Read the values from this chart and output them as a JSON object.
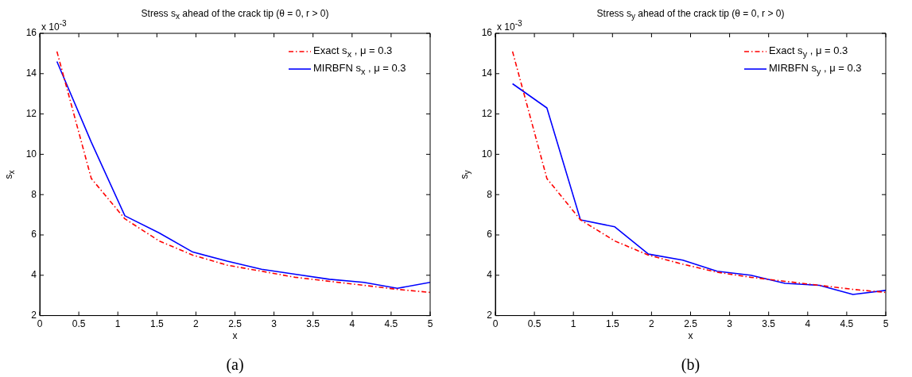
{
  "chart_data": [
    {
      "type": "line",
      "title": "Stress s$_{x}$ ahead of the crack tip (θ = 0, r > 0)",
      "xlabel": "x",
      "ylabel": "s$_{x}$",
      "annotations": [
        "x 10$^{-3}$",
        "(a)"
      ],
      "xlim": [
        0,
        5
      ],
      "xticks": [
        0,
        0.5,
        1,
        1.5,
        2,
        2.5,
        3,
        3.5,
        4,
        4.5,
        5
      ],
      "ylim": [
        2,
        16
      ],
      "yticks": [
        2,
        4,
        6,
        8,
        10,
        12,
        14,
        16
      ],
      "legend": "top right",
      "x": [
        0.22,
        0.66,
        1.09,
        1.53,
        1.96,
        2.4,
        2.84,
        3.27,
        3.71,
        4.15,
        4.58,
        5.0
      ],
      "series": [
        {
          "name": "Exact s$_{x}$ , μ = 0.3",
          "color": "#ff0000",
          "line_style": "dashed",
          "values": [
            15.1,
            8.8,
            6.8,
            5.7,
            5.0,
            4.5,
            4.2,
            3.9,
            3.7,
            3.5,
            3.3,
            3.15
          ]
        },
        {
          "name": "MIRBFN s$_{x}$ , μ = 0.3",
          "color": "#0000ff",
          "line_style": "solid",
          "values": [
            14.6,
            10.6,
            6.95,
            6.1,
            5.15,
            4.7,
            4.3,
            4.05,
            3.8,
            3.65,
            3.35,
            3.65
          ]
        }
      ]
    },
    {
      "type": "line",
      "title": "Stress s$_{y}$ ahead of the crack tip (θ = 0, r > 0)",
      "xlabel": "x",
      "ylabel": "s$_{y}$",
      "annotations": [
        "x 10$^{-3}$",
        "(b)"
      ],
      "xlim": [
        0,
        5
      ],
      "xticks": [
        0,
        0.5,
        1,
        1.5,
        2,
        2.5,
        3,
        3.5,
        4,
        4.5,
        5
      ],
      "ylim": [
        2,
        16
      ],
      "yticks": [
        2,
        4,
        6,
        8,
        10,
        12,
        14,
        16
      ],
      "legend": "top right",
      "x": [
        0.22,
        0.66,
        1.09,
        1.53,
        1.96,
        2.4,
        2.84,
        3.27,
        3.71,
        4.15,
        4.58,
        5.0
      ],
      "series": [
        {
          "name": "Exact s$_{y}$ , μ = 0.3",
          "color": "#ff0000",
          "line_style": "dashed",
          "values": [
            15.1,
            8.8,
            6.75,
            5.7,
            5.0,
            4.55,
            4.15,
            3.9,
            3.7,
            3.5,
            3.3,
            3.15
          ]
        },
        {
          "name": "MIRBFN s$_{y}$ , μ = 0.3",
          "color": "#0000ff",
          "line_style": "solid",
          "values": [
            13.5,
            12.3,
            6.75,
            6.4,
            5.05,
            4.75,
            4.2,
            4.0,
            3.6,
            3.5,
            3.05,
            3.25
          ]
        }
      ]
    }
  ]
}
